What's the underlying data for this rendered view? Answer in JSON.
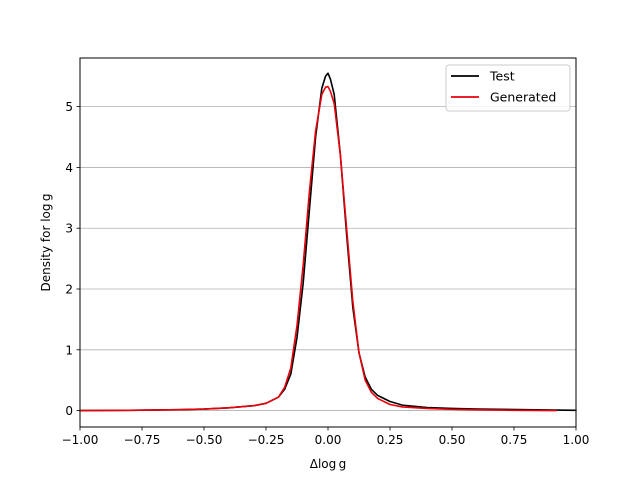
{
  "chart_data": {
    "type": "line",
    "title": "",
    "xlabel": "Δlog g",
    "ylabel": "Density for  log g",
    "xlim": [
      -1.0,
      1.0
    ],
    "ylim": [
      -0.27,
      5.8
    ],
    "xticks": [
      -1.0,
      -0.75,
      -0.5,
      -0.25,
      0.0,
      0.25,
      0.5,
      0.75,
      1.0
    ],
    "xtick_labels": [
      "−1.00",
      "−0.75",
      "−0.50",
      "−0.25",
      "0.00",
      "0.25",
      "0.50",
      "0.75",
      "1.00"
    ],
    "yticks": [
      0,
      1,
      2,
      3,
      4,
      5
    ],
    "ytick_labels": [
      "0",
      "1",
      "2",
      "3",
      "4",
      "5"
    ],
    "grid": "y-axis horizontal lines",
    "legend_position": "top-right",
    "series": [
      {
        "name": "Test",
        "color": "#000000",
        "x": [
          -1.0,
          -0.8,
          -0.6,
          -0.5,
          -0.4,
          -0.3,
          -0.25,
          -0.2,
          -0.175,
          -0.15,
          -0.125,
          -0.1,
          -0.075,
          -0.05,
          -0.025,
          -0.01,
          0.0,
          0.01,
          0.025,
          0.05,
          0.075,
          0.1,
          0.125,
          0.15,
          0.175,
          0.2,
          0.25,
          0.3,
          0.4,
          0.5,
          0.6,
          0.8,
          1.0
        ],
        "y": [
          0.0,
          0.005,
          0.015,
          0.025,
          0.045,
          0.08,
          0.12,
          0.22,
          0.35,
          0.6,
          1.2,
          2.1,
          3.3,
          4.5,
          5.3,
          5.5,
          5.55,
          5.45,
          5.2,
          4.2,
          2.9,
          1.7,
          0.95,
          0.55,
          0.35,
          0.25,
          0.15,
          0.09,
          0.05,
          0.035,
          0.025,
          0.015,
          0.005
        ]
      },
      {
        "name": "Generated",
        "color": "#e8000b",
        "x": [
          -1.0,
          -0.8,
          -0.6,
          -0.5,
          -0.4,
          -0.3,
          -0.25,
          -0.2,
          -0.175,
          -0.15,
          -0.125,
          -0.1,
          -0.075,
          -0.05,
          -0.025,
          -0.01,
          0.0,
          0.01,
          0.025,
          0.05,
          0.075,
          0.1,
          0.125,
          0.15,
          0.175,
          0.2,
          0.25,
          0.3,
          0.4,
          0.5,
          0.6,
          0.75,
          0.92
        ],
        "y": [
          0.0,
          0.005,
          0.015,
          0.025,
          0.045,
          0.08,
          0.12,
          0.22,
          0.38,
          0.7,
          1.4,
          2.4,
          3.6,
          4.6,
          5.2,
          5.32,
          5.33,
          5.25,
          5.05,
          4.2,
          3.0,
          1.8,
          0.95,
          0.5,
          0.3,
          0.2,
          0.1,
          0.06,
          0.035,
          0.02,
          0.012,
          0.005,
          0.0
        ]
      }
    ]
  }
}
